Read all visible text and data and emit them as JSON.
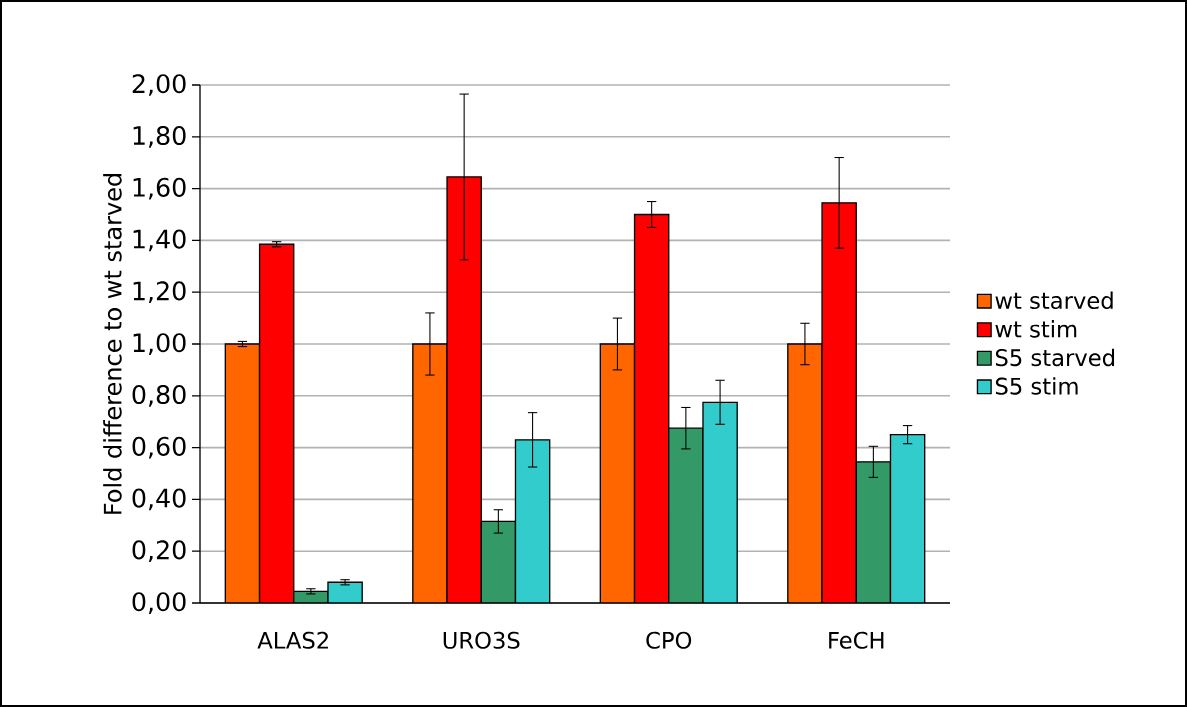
{
  "chart_data": {
    "type": "bar",
    "ylabel": "Fold difference to wt starved",
    "categories": [
      "ALAS2",
      "URO3S",
      "CPO",
      "FeCH"
    ],
    "series": [
      {
        "name": "wt starved",
        "color": "#ff6600",
        "values": [
          1.0,
          1.0,
          1.0,
          1.0
        ],
        "errors": [
          0.01,
          0.12,
          0.1,
          0.08
        ]
      },
      {
        "name": "wt stim",
        "color": "#ff0000",
        "values": [
          1.385,
          1.645,
          1.5,
          1.545
        ],
        "errors": [
          0.01,
          0.32,
          0.05,
          0.175
        ]
      },
      {
        "name": "S5 starved",
        "color": "#339966",
        "values": [
          0.045,
          0.315,
          0.675,
          0.545
        ],
        "errors": [
          0.01,
          0.045,
          0.08,
          0.06
        ]
      },
      {
        "name": "S5 stim",
        "color": "#33cccc",
        "values": [
          0.08,
          0.63,
          0.775,
          0.65
        ],
        "errors": [
          0.01,
          0.105,
          0.085,
          0.035
        ]
      }
    ],
    "ylim": [
      0,
      2
    ],
    "yticks": [
      {
        "value": 0,
        "label": "0,00"
      },
      {
        "value": 0.2,
        "label": "0,20"
      },
      {
        "value": 0.4,
        "label": "0,40"
      },
      {
        "value": 0.6,
        "label": "0,60"
      },
      {
        "value": 0.8,
        "label": "0,80"
      },
      {
        "value": 1.0,
        "label": "1,00"
      },
      {
        "value": 1.2,
        "label": "1,20"
      },
      {
        "value": 1.4,
        "label": "1,40"
      },
      {
        "value": 1.6,
        "label": "1,60"
      },
      {
        "value": 1.8,
        "label": "1,80"
      },
      {
        "value": 2.0,
        "label": "2,00"
      }
    ],
    "grid": "y",
    "legend": "right"
  }
}
